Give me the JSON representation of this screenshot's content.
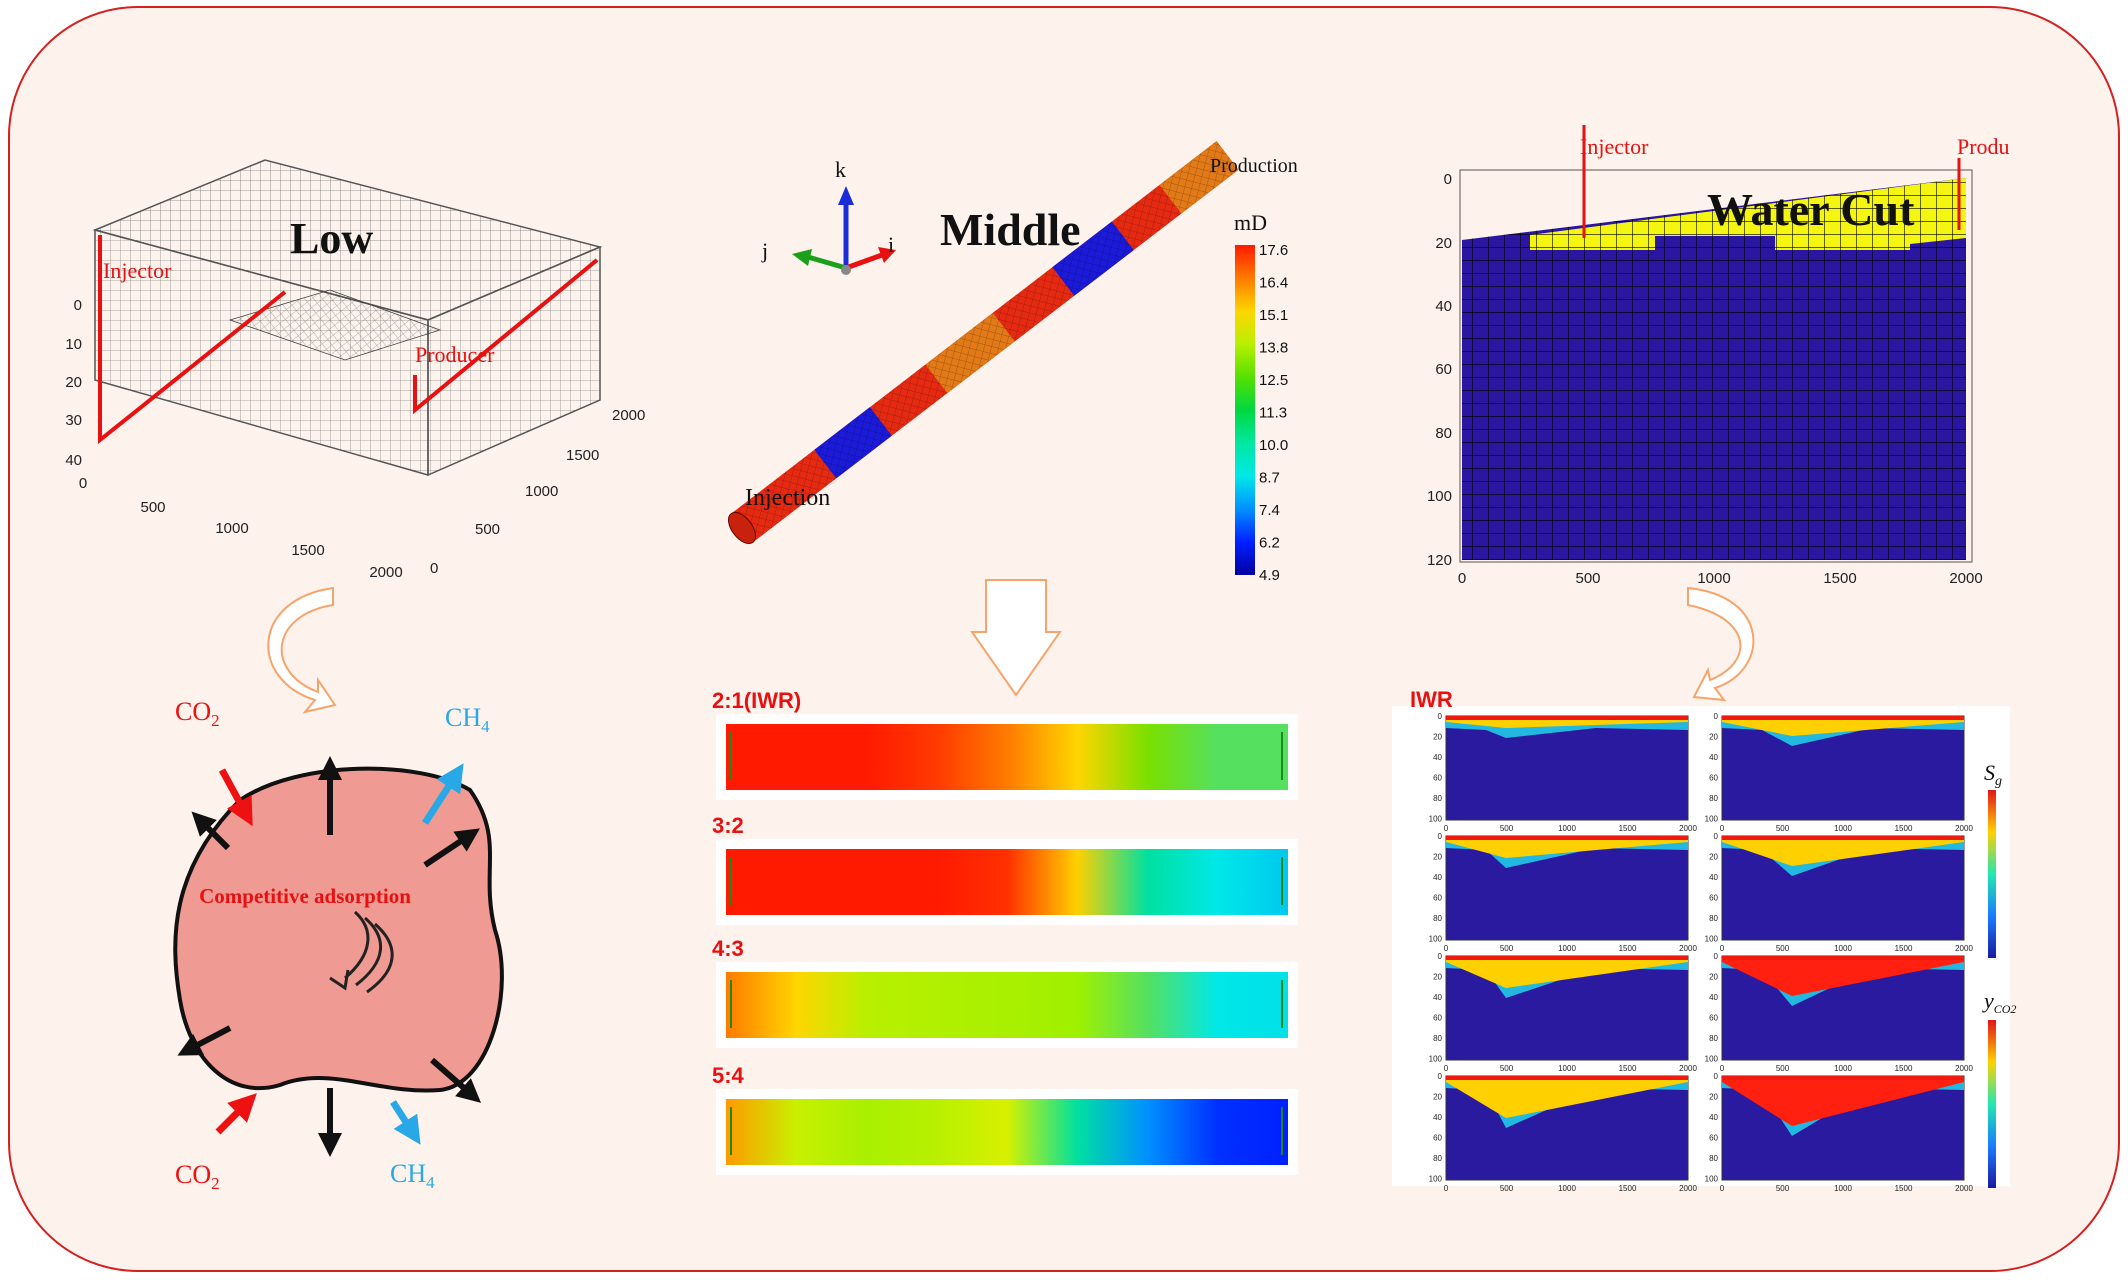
{
  "panels": {
    "low": {
      "title": "Low",
      "injector_label": "Injector",
      "producer_label": "Producer",
      "z_ticks": [
        "0",
        "10",
        "20",
        "30",
        "40"
      ],
      "x_ticks": [
        "0",
        "500",
        "1000",
        "1500",
        "2000"
      ],
      "y_ticks": [
        "0",
        "500",
        "1000",
        "1500",
        "2000"
      ]
    },
    "middle": {
      "title": "Middle",
      "production_label": "Production",
      "injection_label": "Injection",
      "axis_k": "k",
      "axis_j": "j",
      "axis_i": "i",
      "colorbar_unit": "mD",
      "colorbar_ticks": [
        "17.6",
        "16.4",
        "15.1",
        "13.8",
        "12.5",
        "11.3",
        "10.0",
        "8.7",
        "7.4",
        "6.2",
        "4.9"
      ],
      "colorbar_colors": [
        "#ff1a00",
        "#ff7a00",
        "#ffd500",
        "#b8f000",
        "#55e000",
        "#00d840",
        "#00e8a0",
        "#00e8e8",
        "#0090ff",
        "#0020ff",
        "#0000a0"
      ]
    },
    "high": {
      "title": "Water Cut",
      "injector_label": "Injector",
      "producer_label": "Produ",
      "y_ticks": [
        "0",
        "20",
        "40",
        "60",
        "80",
        "100",
        "120"
      ],
      "x_ticks": [
        "0",
        "500",
        "1000",
        "1500",
        "2000"
      ]
    }
  },
  "adsorption": {
    "center_label": "Competitive adsorption",
    "co2_top": "CO",
    "co2_top_sub": "2",
    "ch4_top": "CH",
    "ch4_top_sub": "4",
    "co2_bottom": "CO",
    "co2_bottom_sub": "2",
    "ch4_bottom": "CH",
    "ch4_bottom_sub": "4"
  },
  "ratios": [
    {
      "label": "2:1(IWR)",
      "stops": [
        "#ff1a00",
        "#ff1a00",
        "#ff1a00",
        "#ff3a00",
        "#ff7a00",
        "#ffd500",
        "#7ae000",
        "#55e060",
        "#55e060"
      ]
    },
    {
      "label": "3:2",
      "stops": [
        "#ff1a00",
        "#ff1a00",
        "#ff1a00",
        "#ff1a00",
        "#ff3000",
        "#ffd000",
        "#00e0a0",
        "#00e8e8",
        "#00c8f0"
      ]
    },
    {
      "label": "4:3",
      "stops": [
        "#ff7a00",
        "#ffd500",
        "#b8f000",
        "#b0f000",
        "#a8f000",
        "#a0f000",
        "#55e060",
        "#00e8e8",
        "#00e0e8"
      ]
    },
    {
      "label": "5:4",
      "stops": [
        "#ff9a00",
        "#c8f000",
        "#a8f000",
        "#b8f000",
        "#d8f000",
        "#00e0a0",
        "#0090ff",
        "#0030ff",
        "#0020ff"
      ]
    }
  ],
  "iwr": {
    "title": "IWR",
    "sg_label": "S",
    "sg_sub": "g",
    "yco2_label": "y",
    "yco2_sub": "CO2",
    "small_x_ticks": [
      "0",
      "500",
      "1000",
      "1500",
      "2000"
    ],
    "small_y_ticks": [
      "0",
      "20",
      "40",
      "60",
      "80",
      "100"
    ]
  }
}
